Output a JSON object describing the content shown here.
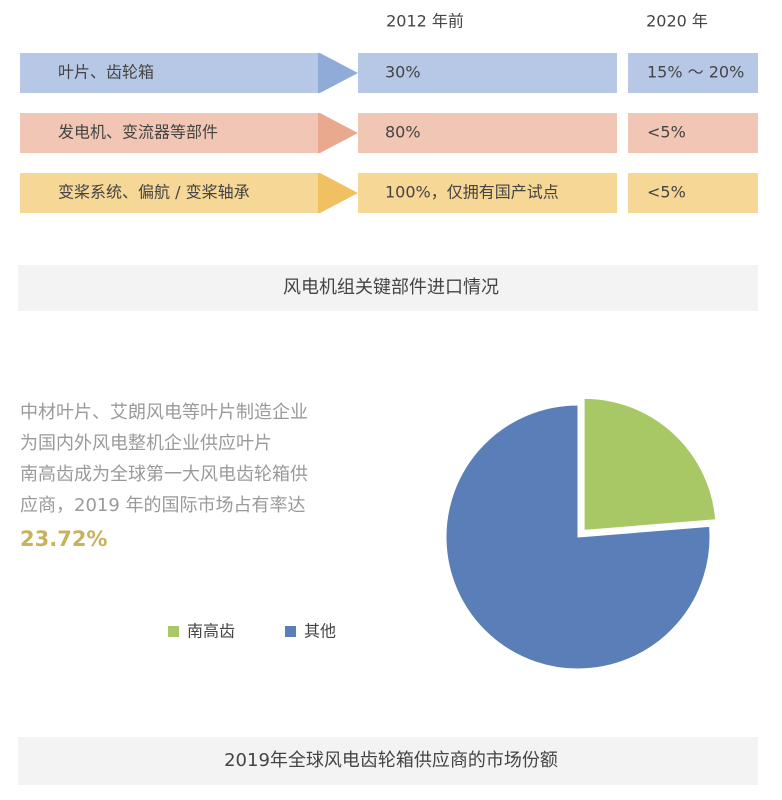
{
  "table": {
    "header": [
      "2012 年前",
      "2020 年"
    ],
    "rows": [
      [
        "叶片、齿轮箱",
        "30%",
        "15% ～ 20%"
      ],
      [
        "发电机、变流器等部件",
        "80%",
        "<5%"
      ],
      [
        "变桨系统、偏航 / 变桨轴承",
        "100%，仅拥有国产试点",
        "<5%"
      ]
    ],
    "caption": "风电机组关键部件进口情况"
  },
  "chart_data": {
    "type": "pie",
    "text_lines": [
      "中材叶片、艾朗风电等叶片制造企业",
      "为国内外风电整机企业供应叶片",
      "南高齿成为全球第一大风电齿轮箱供",
      "应商，2019 年的国际市场占有率达"
    ],
    "highlight": "23.72%",
    "categories": [
      "南高齿",
      "其他"
    ],
    "values": [
      23.72,
      76.28
    ],
    "colors": [
      "#a8c866",
      "#5a7fb8"
    ],
    "caption": "2019年全球风电齿轮箱供应商的市场份额"
  }
}
